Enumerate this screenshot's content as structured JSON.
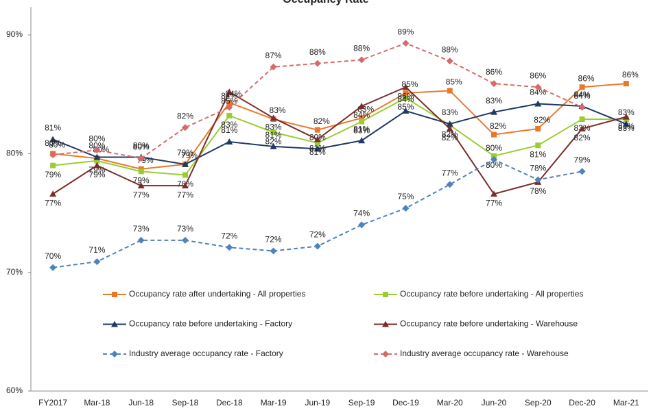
{
  "chart_data": {
    "type": "line",
    "title": "Occupancy Rate",
    "categories": [
      "FY2017",
      "Mar-18",
      "Jun-18",
      "Sep-18",
      "Dec-18",
      "Mar-19",
      "Jun-19",
      "Sep-19",
      "Dec-19",
      "Mar-20",
      "Jun-20",
      "Sep-20",
      "Dec-20",
      "Mar-21"
    ],
    "ylim": [
      60,
      90
    ],
    "yticks": [
      {
        "value": 60,
        "label": "60%"
      },
      {
        "value": 70,
        "label": "70%"
      },
      {
        "value": 80,
        "label": "80%"
      },
      {
        "value": 90,
        "label": "90%"
      }
    ],
    "series": [
      {
        "name": "Occupancy rate after undertaking - All properties",
        "color": "#e8792a",
        "marker": "square",
        "dashed": false,
        "values": [
          80.0,
          79.6,
          78.7,
          79.1,
          84.3,
          82.9,
          82.0,
          83.0,
          85.1,
          85.3,
          81.6,
          82.1,
          85.6,
          85.9
        ],
        "value_labels": [
          "80%",
          "80%",
          "79%",
          "79%",
          "84%",
          "83%",
          "82%",
          "83%",
          "85%",
          "85%",
          "82%",
          "82%",
          "86%",
          "86%"
        ]
      },
      {
        "name": "Occupancy rate before undertaking - All properties",
        "color": "#9acd32",
        "marker": "square",
        "dashed": false,
        "values": [
          79.0,
          79.4,
          78.5,
          78.2,
          83.2,
          81.8,
          80.9,
          82.7,
          84.7,
          82.4,
          79.8,
          80.7,
          82.9,
          82.9
        ],
        "value_labels": [
          "79%",
          "79%",
          "79%",
          "78%",
          "83%",
          "82%",
          "81%",
          "83%",
          "85%",
          "82%",
          "80%",
          "81%",
          "83%",
          "83%"
        ]
      },
      {
        "name": "Occupancy rate before undertaking - Factory",
        "color": "#1f3864",
        "marker": "triangle",
        "dashed": false,
        "values": [
          81.2,
          79.7,
          79.7,
          79.1,
          81.0,
          80.6,
          80.4,
          81.1,
          83.6,
          82.5,
          83.5,
          84.2,
          84.0,
          82.5
        ],
        "value_labels": [
          "81%",
          "80%",
          "80%",
          "79%",
          "81%",
          "81%",
          "80%",
          "81%",
          "84%",
          "83%",
          "83%",
          "84%",
          "84%",
          "83%"
        ]
      },
      {
        "name": "Occupancy rate before undertaking - Warehouse",
        "color": "#7b2c2c",
        "marker": "triangle",
        "dashed": false,
        "values": [
          76.6,
          79.0,
          77.3,
          77.3,
          85.2,
          83.0,
          81.2,
          84.0,
          85.6,
          82.1,
          76.6,
          77.6,
          82.1,
          83.1
        ],
        "value_labels": [
          "77%",
          "79%",
          "77%",
          "77%",
          "85%",
          "83%",
          "81%",
          "84%",
          "86%",
          "82%",
          "77%",
          "78%",
          "82%",
          "83%"
        ]
      },
      {
        "name": "Industry average occupancy rate - Factory",
        "color": "#4f81bd",
        "marker": "diamond",
        "dashed": true,
        "values": [
          70.4,
          70.9,
          72.7,
          72.7,
          72.1,
          71.8,
          72.2,
          74.0,
          75.4,
          77.4,
          79.5,
          77.8,
          78.5,
          null
        ],
        "value_labels": [
          "70%",
          "71%",
          "73%",
          "73%",
          "72%",
          "72%",
          "72%",
          "74%",
          "75%",
          "77%",
          "80%",
          "78%",
          "79%",
          null
        ]
      },
      {
        "name": "Industry average occupancy rate - Warehouse",
        "color": "#d9686a",
        "marker": "diamond",
        "dashed": true,
        "values": [
          79.9,
          80.3,
          79.6,
          82.2,
          83.9,
          87.3,
          87.6,
          87.9,
          89.3,
          87.8,
          85.9,
          85.6,
          83.9,
          null
        ],
        "value_labels": [
          "80%",
          "80%",
          "80%",
          "82%",
          "84%",
          "87%",
          "88%",
          "88%",
          "89%",
          "88%",
          "86%",
          "86%",
          "84%",
          null
        ]
      }
    ]
  }
}
